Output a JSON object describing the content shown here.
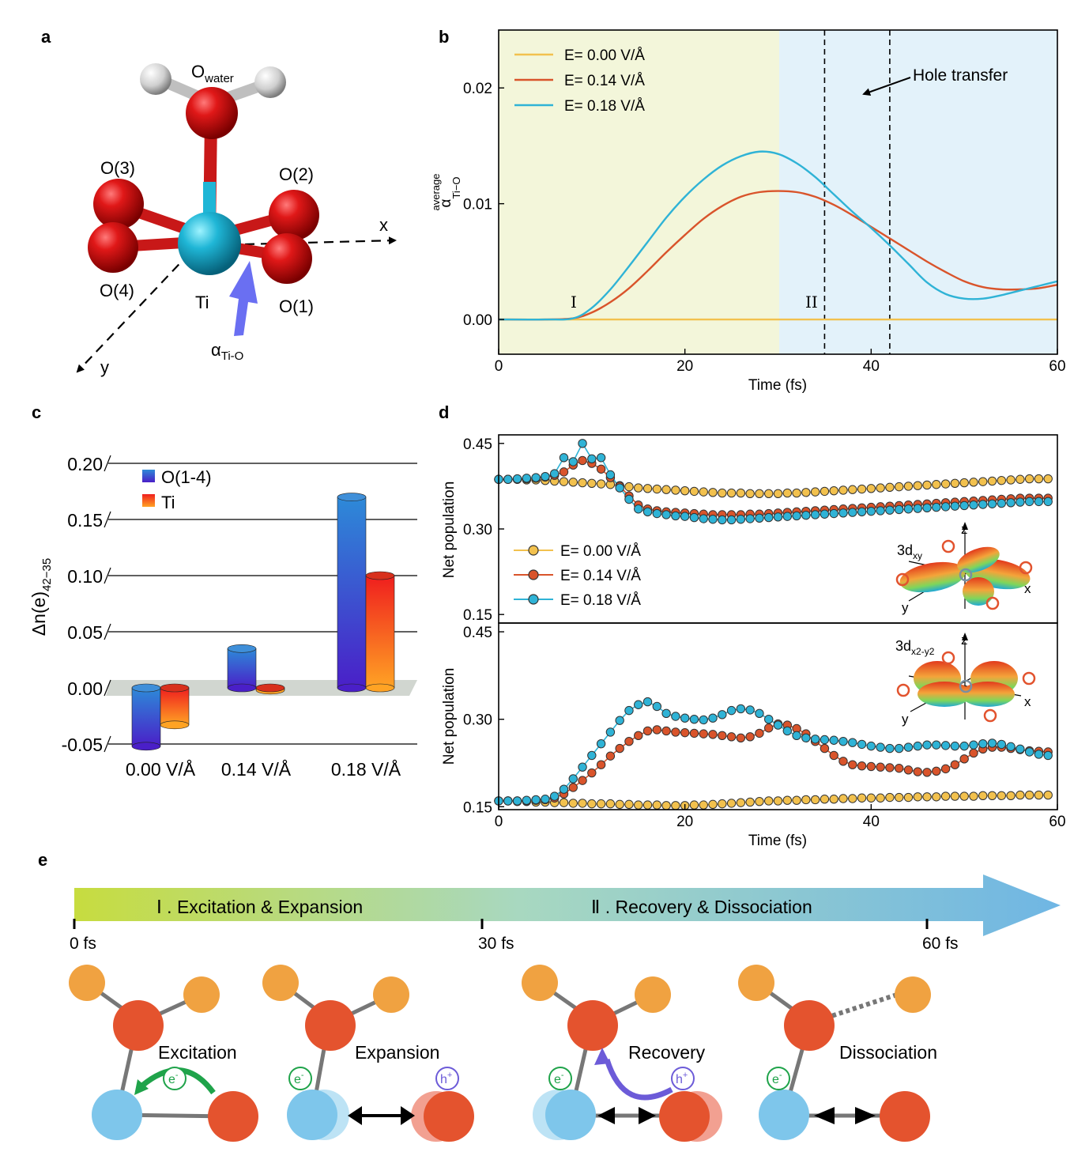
{
  "colors": {
    "yellow": "#F2C14E",
    "orange": "#D9542B",
    "cyan": "#2FB3D6",
    "regionI": "#F3F6DA",
    "regionII": "#E3F2FA",
    "barO": "#3D46C8",
    "barTi": "#F46A1E",
    "oxygen": "#E4532E",
    "hydrogen": "#F0A241",
    "titanium": "#7EC6EB",
    "electron": "#1FA34A",
    "hole": "#6C5BD8"
  },
  "panel_a": {
    "letter": "a",
    "atoms": {
      "owater": "O",
      "owater_sub": "water",
      "o1": "O(1)",
      "o2": "O(2)",
      "o3": "O(3)",
      "o4": "O(4)",
      "ti": "Ti"
    },
    "axes": {
      "x": "x",
      "y": "y"
    },
    "alpha": "α",
    "alpha_sub": "Ti-O"
  },
  "panel_b": {
    "letter": "b",
    "regions": {
      "I": "I",
      "II": "II"
    },
    "annotation": "Hole transfer"
  },
  "panel_c": {
    "letter": "c"
  },
  "panel_d": {
    "letter": "d",
    "orbital_top": {
      "name": "3d",
      "sub": "xy",
      "x": "x",
      "y": "y",
      "z": "z"
    },
    "orbital_bottom": {
      "name": "3d",
      "sub": "x2-y2",
      "x": "x",
      "y": "y",
      "z": "z"
    }
  },
  "panel_e": {
    "letter": "e",
    "phase1": "Ⅰ . Excitation & Expansion",
    "phase2": "Ⅱ . Recovery & Dissociation",
    "ticks": [
      "0 fs",
      "30 fs",
      "60 fs"
    ],
    "stages": [
      "Excitation",
      "Expansion",
      "Recovery",
      "Dissociation"
    ],
    "electron": "e",
    "hole": "h",
    "electron_sup": "-",
    "hole_sup": "+"
  },
  "chart_data": [
    {
      "type": "line",
      "panel": "b",
      "xlabel": "Time (fs)",
      "ylabel": "α",
      "ylabel_sub": "Ti−O",
      "ylabel_sup": "average",
      "xlim": [
        0,
        60
      ],
      "ylim": [
        -0.003,
        0.025
      ],
      "xticks": [
        0,
        20,
        40,
        60
      ],
      "xtick_labels": [
        "0",
        "20",
        "40",
        "60"
      ],
      "yticks": [
        0,
        0.01,
        0.02
      ],
      "ytick_labels": [
        "0.00",
        "0.01",
        "0.02"
      ],
      "regions": [
        [
          0,
          30
        ],
        [
          30,
          60
        ]
      ],
      "vlines": [
        35,
        42
      ],
      "legend_position": "top-left",
      "series": [
        {
          "name": "E= 0.00 V/Å",
          "color": "#F2C14E",
          "x": [
            0,
            60
          ],
          "y": [
            0,
            0
          ]
        },
        {
          "name": "E= 0.14 V/Å",
          "color": "#D9542B",
          "x": [
            0,
            5,
            8,
            10,
            12,
            14,
            16,
            18,
            20,
            22,
            24,
            26,
            28,
            30,
            32,
            34,
            36,
            38,
            40,
            42,
            44,
            46,
            48,
            50,
            52,
            54,
            56,
            58,
            60
          ],
          "y": [
            0,
            0,
            0.0001,
            0.0006,
            0.0015,
            0.0027,
            0.0042,
            0.0058,
            0.0073,
            0.0087,
            0.0098,
            0.0106,
            0.011,
            0.0111,
            0.011,
            0.0106,
            0.0099,
            0.009,
            0.008,
            0.007,
            0.006,
            0.005,
            0.0041,
            0.0033,
            0.0028,
            0.0026,
            0.0026,
            0.0027,
            0.003
          ]
        },
        {
          "name": "E= 0.18 V/Å",
          "color": "#2FB3D6",
          "x": [
            0,
            5,
            8,
            10,
            12,
            14,
            16,
            18,
            20,
            22,
            24,
            26,
            28,
            30,
            32,
            34,
            36,
            38,
            40,
            42,
            44,
            46,
            48,
            50,
            52,
            54,
            56,
            58,
            60
          ],
          "y": [
            0,
            0,
            0.0001,
            0.001,
            0.0026,
            0.0046,
            0.0067,
            0.0088,
            0.0106,
            0.0121,
            0.0133,
            0.0141,
            0.0145,
            0.0143,
            0.0135,
            0.0123,
            0.0108,
            0.0093,
            0.0079,
            0.0064,
            0.0048,
            0.0032,
            0.0022,
            0.0018,
            0.0018,
            0.0021,
            0.0025,
            0.0029,
            0.0033
          ]
        }
      ]
    },
    {
      "type": "bar",
      "panel": "c",
      "ylabel": "Δn(e)",
      "ylabel_sub": "42−35",
      "categories": [
        "0.00 V/Å",
        "0.14 V/Å",
        "0.18 V/Å"
      ],
      "ylim": [
        -0.05,
        0.2
      ],
      "yticks": [
        -0.05,
        0,
        0.05,
        0.1,
        0.15,
        0.2
      ],
      "ytick_labels": [
        "-0.05",
        "0.00",
        "0.05",
        "0.10",
        "0.15",
        "0.20"
      ],
      "legend_position": "top-left",
      "series": [
        {
          "name": "O(1-4)",
          "values": [
            -0.052,
            0.035,
            0.17
          ]
        },
        {
          "name": "Ti",
          "values": [
            -0.033,
            -0.002,
            0.1
          ]
        }
      ]
    },
    {
      "type": "scatter",
      "panel": "d-top",
      "ylabel": "Net population",
      "xlim": [
        0,
        60
      ],
      "ylim": [
        0.135,
        0.465
      ],
      "yticks": [
        0.15,
        0.3,
        0.45
      ],
      "ytick_labels": [
        "0.15",
        "0.30",
        "0.45"
      ],
      "legend_position": "bottom-left",
      "series": [
        {
          "name": "E= 0.00 V/Å",
          "color": "#F2C14E",
          "x": [
            0,
            1,
            2,
            3,
            4,
            5,
            6,
            7,
            8,
            9,
            10,
            11,
            12,
            13,
            14,
            15,
            16,
            17,
            18,
            19,
            20,
            21,
            22,
            23,
            24,
            25,
            26,
            27,
            28,
            29,
            30,
            31,
            32,
            33,
            34,
            35,
            36,
            37,
            38,
            39,
            40,
            41,
            42,
            43,
            44,
            45,
            46,
            47,
            48,
            49,
            50,
            51,
            52,
            53,
            54,
            55,
            56,
            57,
            58,
            59
          ],
          "y": [
            0.387,
            0.387,
            0.387,
            0.386,
            0.386,
            0.385,
            0.384,
            0.383,
            0.382,
            0.381,
            0.38,
            0.379,
            0.378,
            0.376,
            0.374,
            0.372,
            0.371,
            0.37,
            0.369,
            0.368,
            0.367,
            0.366,
            0.365,
            0.364,
            0.363,
            0.363,
            0.363,
            0.362,
            0.362,
            0.362,
            0.362,
            0.363,
            0.363,
            0.364,
            0.365,
            0.366,
            0.367,
            0.368,
            0.369,
            0.37,
            0.371,
            0.372,
            0.373,
            0.374,
            0.375,
            0.376,
            0.377,
            0.378,
            0.379,
            0.38,
            0.381,
            0.382,
            0.383,
            0.384,
            0.385,
            0.386,
            0.387,
            0.388,
            0.388,
            0.388
          ]
        },
        {
          "name": "E= 0.14 V/Å",
          "color": "#D9542B",
          "x": [
            0,
            1,
            2,
            3,
            4,
            5,
            6,
            7,
            8,
            9,
            10,
            11,
            12,
            13,
            14,
            15,
            16,
            17,
            18,
            19,
            20,
            21,
            22,
            23,
            24,
            25,
            26,
            27,
            28,
            29,
            30,
            31,
            32,
            33,
            34,
            35,
            36,
            37,
            38,
            39,
            40,
            41,
            42,
            43,
            44,
            45,
            46,
            47,
            48,
            49,
            50,
            51,
            52,
            53,
            54,
            55,
            56,
            57,
            58,
            59
          ],
          "y": [
            0.387,
            0.387,
            0.387,
            0.388,
            0.389,
            0.391,
            0.394,
            0.4,
            0.412,
            0.42,
            0.415,
            0.405,
            0.39,
            0.375,
            0.358,
            0.342,
            0.335,
            0.332,
            0.33,
            0.329,
            0.328,
            0.327,
            0.326,
            0.325,
            0.325,
            0.325,
            0.325,
            0.326,
            0.326,
            0.327,
            0.328,
            0.329,
            0.33,
            0.331,
            0.332,
            0.333,
            0.334,
            0.335,
            0.336,
            0.337,
            0.338,
            0.339,
            0.34,
            0.341,
            0.342,
            0.343,
            0.344,
            0.345,
            0.346,
            0.347,
            0.348,
            0.349,
            0.35,
            0.351,
            0.352,
            0.353,
            0.354,
            0.354,
            0.354,
            0.354
          ]
        },
        {
          "name": "E= 0.18 V/Å",
          "color": "#2FB3D6",
          "x": [
            0,
            1,
            2,
            3,
            4,
            5,
            6,
            7,
            8,
            9,
            10,
            11,
            12,
            13,
            14,
            15,
            16,
            17,
            18,
            19,
            20,
            21,
            22,
            23,
            24,
            25,
            26,
            27,
            28,
            29,
            30,
            31,
            32,
            33,
            34,
            35,
            36,
            37,
            38,
            39,
            40,
            41,
            42,
            43,
            44,
            45,
            46,
            47,
            48,
            49,
            50,
            51,
            52,
            53,
            54,
            55,
            56,
            57,
            58,
            59
          ],
          "y": [
            0.387,
            0.387,
            0.388,
            0.389,
            0.39,
            0.392,
            0.397,
            0.425,
            0.418,
            0.45,
            0.423,
            0.425,
            0.395,
            0.372,
            0.352,
            0.335,
            0.33,
            0.327,
            0.325,
            0.323,
            0.322,
            0.32,
            0.318,
            0.317,
            0.316,
            0.316,
            0.317,
            0.318,
            0.319,
            0.32,
            0.321,
            0.322,
            0.323,
            0.324,
            0.325,
            0.326,
            0.327,
            0.328,
            0.329,
            0.33,
            0.331,
            0.332,
            0.333,
            0.334,
            0.335,
            0.336,
            0.337,
            0.338,
            0.339,
            0.34,
            0.341,
            0.342,
            0.343,
            0.344,
            0.345,
            0.346,
            0.347,
            0.348,
            0.348,
            0.348
          ]
        }
      ]
    },
    {
      "type": "scatter",
      "panel": "d-bottom",
      "xlabel": "Time (fs)",
      "ylabel": "Net population",
      "xlim": [
        0,
        60
      ],
      "ylim": [
        0.145,
        0.465
      ],
      "xticks": [
        0,
        20,
        40,
        60
      ],
      "xtick_labels": [
        "0",
        "20",
        "40",
        "60"
      ],
      "yticks": [
        0.15,
        0.3,
        0.45
      ],
      "ytick_labels": [
        "0.15",
        "0.30",
        "0.45"
      ],
      "series": [
        {
          "name": "E= 0.00 V/Å",
          "color": "#F2C14E",
          "x": [
            0,
            1,
            2,
            3,
            4,
            5,
            6,
            7,
            8,
            9,
            10,
            11,
            12,
            13,
            14,
            15,
            16,
            17,
            18,
            19,
            20,
            21,
            22,
            23,
            24,
            25,
            26,
            27,
            28,
            29,
            30,
            31,
            32,
            33,
            34,
            35,
            36,
            37,
            38,
            39,
            40,
            41,
            42,
            43,
            44,
            45,
            46,
            47,
            48,
            49,
            50,
            51,
            52,
            53,
            54,
            55,
            56,
            57,
            58,
            59
          ],
          "y": [
            0.16,
            0.16,
            0.159,
            0.159,
            0.158,
            0.158,
            0.157,
            0.157,
            0.156,
            0.156,
            0.155,
            0.155,
            0.155,
            0.154,
            0.154,
            0.153,
            0.153,
            0.153,
            0.152,
            0.152,
            0.152,
            0.153,
            0.153,
            0.154,
            0.155,
            0.156,
            0.157,
            0.158,
            0.159,
            0.16,
            0.16,
            0.161,
            0.161,
            0.162,
            0.162,
            0.163,
            0.163,
            0.164,
            0.164,
            0.165,
            0.165,
            0.165,
            0.166,
            0.166,
            0.166,
            0.167,
            0.167,
            0.167,
            0.168,
            0.168,
            0.168,
            0.168,
            0.169,
            0.169,
            0.169,
            0.169,
            0.17,
            0.17,
            0.17,
            0.17
          ]
        },
        {
          "name": "E= 0.14 V/Å",
          "color": "#D9542B",
          "x": [
            0,
            1,
            2,
            3,
            4,
            5,
            6,
            7,
            8,
            9,
            10,
            11,
            12,
            13,
            14,
            15,
            16,
            17,
            18,
            19,
            20,
            21,
            22,
            23,
            24,
            25,
            26,
            27,
            28,
            29,
            30,
            31,
            32,
            33,
            34,
            35,
            36,
            37,
            38,
            39,
            40,
            41,
            42,
            43,
            44,
            45,
            46,
            47,
            48,
            49,
            50,
            51,
            52,
            53,
            54,
            55,
            56,
            57,
            58,
            59
          ],
          "y": [
            0.16,
            0.16,
            0.16,
            0.16,
            0.161,
            0.162,
            0.165,
            0.172,
            0.183,
            0.195,
            0.208,
            0.222,
            0.237,
            0.25,
            0.262,
            0.272,
            0.28,
            0.282,
            0.28,
            0.278,
            0.277,
            0.276,
            0.275,
            0.274,
            0.272,
            0.27,
            0.268,
            0.27,
            0.276,
            0.285,
            0.292,
            0.29,
            0.284,
            0.275,
            0.262,
            0.25,
            0.238,
            0.228,
            0.222,
            0.22,
            0.219,
            0.218,
            0.217,
            0.216,
            0.213,
            0.21,
            0.209,
            0.211,
            0.215,
            0.222,
            0.232,
            0.242,
            0.249,
            0.252,
            0.252,
            0.25,
            0.248,
            0.246,
            0.245,
            0.244
          ]
        },
        {
          "name": "E= 0.18 V/Å",
          "color": "#2FB3D6",
          "x": [
            0,
            1,
            2,
            3,
            4,
            5,
            6,
            7,
            8,
            9,
            10,
            11,
            12,
            13,
            14,
            15,
            16,
            17,
            18,
            19,
            20,
            21,
            22,
            23,
            24,
            25,
            26,
            27,
            28,
            29,
            30,
            31,
            32,
            33,
            34,
            35,
            36,
            37,
            38,
            39,
            40,
            41,
            42,
            43,
            44,
            45,
            46,
            47,
            48,
            49,
            50,
            51,
            52,
            53,
            54,
            55,
            56,
            57,
            58,
            59
          ],
          "y": [
            0.16,
            0.16,
            0.16,
            0.161,
            0.162,
            0.163,
            0.168,
            0.18,
            0.198,
            0.218,
            0.238,
            0.258,
            0.278,
            0.298,
            0.315,
            0.325,
            0.33,
            0.322,
            0.31,
            0.305,
            0.302,
            0.3,
            0.299,
            0.302,
            0.308,
            0.315,
            0.318,
            0.316,
            0.31,
            0.3,
            0.29,
            0.28,
            0.272,
            0.268,
            0.266,
            0.265,
            0.264,
            0.262,
            0.26,
            0.257,
            0.254,
            0.252,
            0.25,
            0.25,
            0.252,
            0.254,
            0.256,
            0.256,
            0.255,
            0.254,
            0.254,
            0.256,
            0.258,
            0.259,
            0.257,
            0.253,
            0.249,
            0.244,
            0.24,
            0.238
          ]
        }
      ]
    }
  ]
}
